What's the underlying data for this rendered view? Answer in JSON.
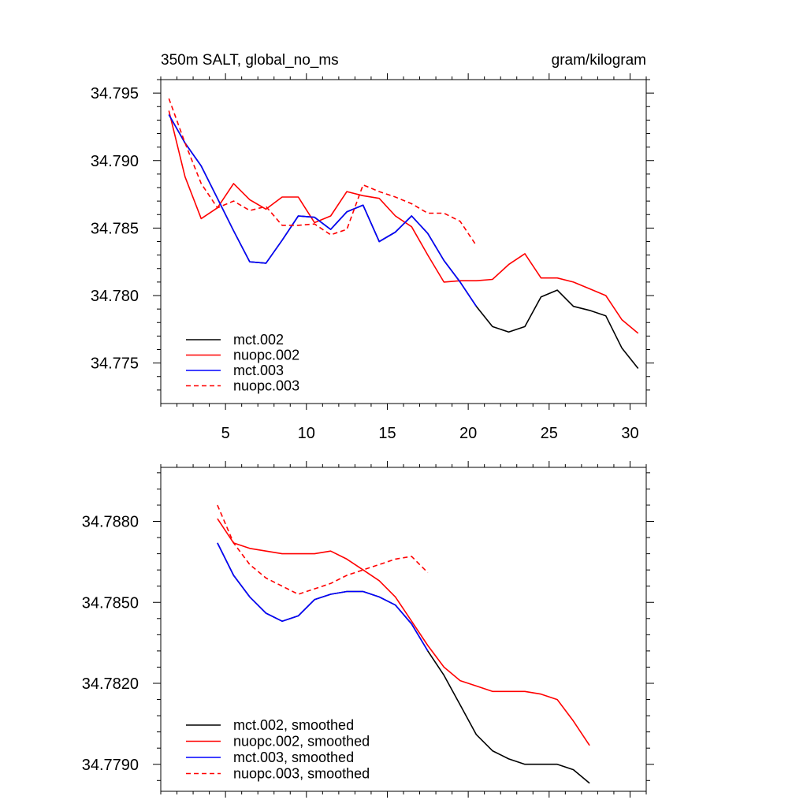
{
  "chart_data": [
    {
      "type": "line",
      "title_left": "350m SALT, global_no_ms",
      "title_right": "gram/kilogram",
      "xlabel": "",
      "ylabel": "",
      "xlim": [
        1,
        31
      ],
      "ylim": [
        34.772,
        34.796
      ],
      "xticks": [
        5,
        10,
        15,
        20,
        25,
        30
      ],
      "yticks": [
        34.775,
        34.78,
        34.785,
        34.79,
        34.795
      ],
      "ytick_decimals": 3,
      "legend_position": "bottom-left",
      "series": [
        {
          "name": "mct.002",
          "color": "#000000",
          "dash": "solid",
          "x": [
            1.5,
            2.5,
            3.5,
            4.5,
            5.5,
            6.5,
            7.5,
            8.5,
            9.5,
            10.5,
            11.5,
            12.5,
            13.5,
            14.5,
            15.5,
            16.5,
            17.5,
            18.5,
            19.5,
            20.5,
            21.5,
            22.5,
            23.5,
            24.5,
            25.5,
            26.5,
            27.5,
            28.5,
            29.5,
            30.5
          ],
          "values": [
            34.7934,
            34.7913,
            34.7896,
            34.7872,
            34.7848,
            34.7825,
            34.7824,
            34.7841,
            34.7859,
            34.7858,
            34.7849,
            34.7862,
            34.7867,
            34.784,
            34.7847,
            34.7859,
            34.7846,
            34.7826,
            34.781,
            34.7792,
            34.7777,
            34.7773,
            34.7777,
            34.7799,
            34.7804,
            34.7792,
            34.7789,
            34.7785,
            34.7761,
            34.7746
          ]
        },
        {
          "name": "nuopc.002",
          "color": "#ff0000",
          "dash": "solid",
          "x": [
            1.5,
            2.5,
            3.5,
            4.5,
            5.5,
            6.5,
            7.5,
            8.5,
            9.5,
            10.5,
            11.5,
            12.5,
            13.5,
            14.5,
            15.5,
            16.5,
            17.5,
            18.5,
            19.5,
            20.5,
            21.5,
            22.5,
            23.5,
            24.5,
            25.5,
            26.5,
            27.5,
            28.5,
            29.5,
            30.5
          ],
          "values": [
            34.7937,
            34.7888,
            34.7857,
            34.7865,
            34.7883,
            34.7871,
            34.7864,
            34.7873,
            34.7873,
            34.7854,
            34.7859,
            34.7877,
            34.7874,
            34.7872,
            34.7859,
            34.7851,
            34.783,
            34.781,
            34.7811,
            34.7811,
            34.7812,
            34.7823,
            34.7831,
            34.7813,
            34.7813,
            34.781,
            34.7805,
            34.78,
            34.7782,
            34.7772
          ]
        },
        {
          "name": "mct.003",
          "color": "#0000ff",
          "dash": "solid",
          "x": [
            1.5,
            2.5,
            3.5,
            4.5,
            5.5,
            6.5,
            7.5,
            8.5,
            9.5,
            10.5,
            11.5,
            12.5,
            13.5,
            14.5,
            15.5,
            16.5,
            17.5,
            18.5,
            19.5,
            20.5
          ],
          "values": [
            34.7934,
            34.7913,
            34.7896,
            34.7872,
            34.7848,
            34.7825,
            34.7824,
            34.7841,
            34.7859,
            34.7858,
            34.7849,
            34.7862,
            34.7867,
            34.784,
            34.7847,
            34.7859,
            34.7846,
            34.7826,
            34.781,
            34.7792
          ]
        },
        {
          "name": "nuopc.003",
          "color": "#ff0000",
          "dash": "dashed",
          "x": [
            1.5,
            2.5,
            3.5,
            4.5,
            5.5,
            6.5,
            7.5,
            8.5,
            9.5,
            10.5,
            11.5,
            12.5,
            13.5,
            14.5,
            15.5,
            16.5,
            17.5,
            18.5,
            19.5,
            20.5
          ],
          "values": [
            34.7946,
            34.7913,
            34.7883,
            34.7865,
            34.787,
            34.7863,
            34.7866,
            34.7852,
            34.7852,
            34.7853,
            34.7845,
            34.7849,
            34.7882,
            34.7877,
            34.7873,
            34.7868,
            34.7861,
            34.7861,
            34.7855,
            34.7837
          ]
        }
      ]
    },
    {
      "type": "line",
      "title_left": "",
      "title_right": "",
      "xlabel": "",
      "ylabel": "",
      "xlim": [
        1,
        31
      ],
      "ylim": [
        34.778,
        34.79
      ],
      "xticks": [
        5,
        10,
        15,
        20,
        25,
        30
      ],
      "show_xtick_labels": false,
      "yticks": [
        34.779,
        34.782,
        34.785,
        34.788
      ],
      "ytick_decimals": 4,
      "legend_position": "bottom-left",
      "series": [
        {
          "name": "mct.002, smoothed",
          "color": "#000000",
          "dash": "solid",
          "x": [
            4.5,
            5.5,
            6.5,
            7.5,
            8.5,
            9.5,
            10.5,
            11.5,
            12.5,
            13.5,
            14.5,
            15.5,
            16.5,
            17.5,
            18.5,
            19.5,
            20.5,
            21.5,
            22.5,
            23.5,
            24.5,
            25.5,
            26.5,
            27.5
          ],
          "values": [
            34.7872,
            34.786,
            34.7852,
            34.7846,
            34.7843,
            34.7845,
            34.7851,
            34.7853,
            34.7854,
            34.7854,
            34.7852,
            34.7849,
            34.7842,
            34.7832,
            34.7823,
            34.7812,
            34.7801,
            34.7795,
            34.7792,
            34.779,
            34.779,
            34.779,
            34.7788,
            34.7783
          ]
        },
        {
          "name": "nuopc.002, smoothed",
          "color": "#ff0000",
          "dash": "solid",
          "x": [
            4.5,
            5.5,
            6.5,
            7.5,
            8.5,
            9.5,
            10.5,
            11.5,
            12.5,
            13.5,
            14.5,
            15.5,
            16.5,
            17.5,
            18.5,
            19.5,
            20.5,
            21.5,
            22.5,
            23.5,
            24.5,
            25.5,
            26.5,
            27.5
          ],
          "values": [
            34.7881,
            34.7872,
            34.787,
            34.7869,
            34.7868,
            34.7868,
            34.7868,
            34.7869,
            34.7866,
            34.7862,
            34.7858,
            34.7852,
            34.7843,
            34.7834,
            34.7826,
            34.7821,
            34.7819,
            34.7817,
            34.7817,
            34.7817,
            34.7816,
            34.7814,
            34.7806,
            34.7797
          ]
        },
        {
          "name": "mct.003, smoothed",
          "color": "#0000ff",
          "dash": "solid",
          "x": [
            4.5,
            5.5,
            6.5,
            7.5,
            8.5,
            9.5,
            10.5,
            11.5,
            12.5,
            13.5,
            14.5,
            15.5,
            16.5,
            17.5
          ],
          "values": [
            34.7872,
            34.786,
            34.7852,
            34.7846,
            34.7843,
            34.7845,
            34.7851,
            34.7853,
            34.7854,
            34.7854,
            34.7852,
            34.7849,
            34.7842,
            34.7832
          ]
        },
        {
          "name": "nuopc.003, smoothed",
          "color": "#ff0000",
          "dash": "dashed",
          "x": [
            4.5,
            5.5,
            6.5,
            7.5,
            8.5,
            9.5,
            10.5,
            11.5,
            12.5,
            13.5,
            14.5,
            15.5,
            16.5,
            17.5
          ],
          "values": [
            34.7886,
            34.7872,
            34.7864,
            34.7859,
            34.7856,
            34.7853,
            34.7855,
            34.7857,
            34.786,
            34.7862,
            34.7864,
            34.7866,
            34.7867,
            34.7861
          ]
        }
      ]
    }
  ]
}
